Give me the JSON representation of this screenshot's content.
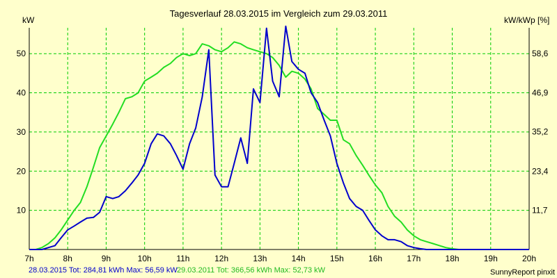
{
  "chart_data": {
    "type": "line",
    "title": "Tagesverlauf 28.03.2015 im Vergleich zum 29.03.2011",
    "ylabel_left": "kW",
    "ylabel_right": "kW/kWp [%]",
    "x_ticks": [
      "7h",
      "8h",
      "9h",
      "10h",
      "11h",
      "12h",
      "13h",
      "14h",
      "15h",
      "16h",
      "17h",
      "18h",
      "19h",
      "20h"
    ],
    "xlim": [
      7,
      20
    ],
    "ylim": [
      0,
      56.6
    ],
    "y_ticks_left": [
      "10",
      "20",
      "30",
      "40",
      "50"
    ],
    "y_ticks_right": [
      "11,7",
      "23,4",
      "35,2",
      "46,9",
      "58,6"
    ],
    "grid": true,
    "colors": {
      "background": "#ffffcc",
      "grid": "#00cc00",
      "axis": "#000000",
      "series_2015": "#0000cc",
      "series_2011": "#22dd22"
    },
    "series": [
      {
        "name": "28.03.2015",
        "x": [
          7.0,
          7.33,
          7.67,
          7.83,
          8.0,
          8.17,
          8.33,
          8.5,
          8.67,
          8.83,
          9.0,
          9.17,
          9.33,
          9.5,
          9.67,
          9.83,
          10.0,
          10.17,
          10.33,
          10.5,
          10.67,
          10.83,
          11.0,
          11.17,
          11.33,
          11.5,
          11.67,
          11.83,
          12.0,
          12.17,
          12.33,
          12.5,
          12.67,
          12.83,
          13.0,
          13.17,
          13.33,
          13.5,
          13.67,
          13.83,
          14.0,
          14.17,
          14.33,
          14.5,
          14.67,
          14.83,
          15.0,
          15.17,
          15.33,
          15.5,
          15.67,
          15.83,
          16.0,
          16.17,
          16.33,
          16.5,
          16.67,
          16.83,
          17.0,
          17.17,
          17.33,
          17.5,
          17.67,
          17.83,
          18.0,
          18.17,
          18.33,
          18.5,
          18.67,
          18.83,
          19.0,
          19.17,
          19.33,
          19.5,
          19.67,
          19.83,
          20.0
        ],
        "values": [
          0,
          0,
          1,
          3,
          5,
          6,
          7,
          8,
          8.2,
          9.5,
          13.5,
          13,
          13.5,
          15,
          17,
          19,
          22,
          27,
          29.5,
          29,
          27,
          24,
          20.5,
          27,
          31,
          39,
          51,
          19,
          16,
          16,
          22,
          28.5,
          22,
          41,
          37.5,
          56.5,
          43,
          39,
          57,
          48,
          46,
          45,
          40,
          37.5,
          33,
          29,
          22,
          17,
          13,
          11,
          10,
          7.5,
          5,
          3.5,
          2.5,
          2.5,
          2,
          1,
          0.5,
          0.2,
          0,
          0,
          0,
          0,
          0,
          0,
          0,
          0,
          0,
          0,
          0,
          0,
          0,
          0,
          0,
          0,
          0
        ],
        "total_kwh": "284,81",
        "max_kw": "56,59"
      },
      {
        "name": "29.03.2011",
        "x": [
          7.0,
          7.17,
          7.33,
          7.5,
          7.67,
          7.83,
          8.0,
          8.17,
          8.33,
          8.5,
          8.67,
          8.83,
          9.0,
          9.17,
          9.33,
          9.5,
          9.67,
          9.83,
          10.0,
          10.17,
          10.33,
          10.5,
          10.67,
          10.83,
          11.0,
          11.17,
          11.33,
          11.5,
          11.67,
          11.83,
          12.0,
          12.17,
          12.33,
          12.5,
          12.67,
          12.83,
          13.0,
          13.17,
          13.33,
          13.5,
          13.67,
          13.83,
          14.0,
          14.17,
          14.33,
          14.5,
          14.67,
          14.83,
          15.0,
          15.17,
          15.33,
          15.5,
          15.67,
          15.83,
          16.0,
          16.17,
          16.33,
          16.5,
          16.67,
          16.83,
          17.0,
          17.17,
          17.33,
          17.5,
          17.67,
          17.83,
          18.0,
          18.17,
          18.33,
          18.5,
          18.67,
          18.83,
          19.0,
          19.17,
          19.33,
          19.5,
          19.67,
          19.83,
          20.0
        ],
        "values": [
          0,
          0,
          0.5,
          1.5,
          3,
          5,
          7.5,
          10,
          12,
          16,
          21,
          26,
          29,
          32,
          35,
          38.5,
          39,
          40,
          43,
          44,
          45,
          46.5,
          47.5,
          49,
          50,
          49.5,
          50,
          52.5,
          52,
          51,
          50.5,
          51.5,
          53,
          52.5,
          51.5,
          51,
          50.5,
          50,
          49,
          47,
          44,
          45.5,
          45,
          43.5,
          41,
          36,
          34.5,
          33,
          33,
          28,
          27,
          24,
          21.5,
          19,
          16.5,
          14.5,
          11,
          8.5,
          7,
          5,
          3.5,
          2.5,
          2,
          1.5,
          1,
          0.5,
          0.2,
          0,
          0,
          0,
          0,
          0,
          0,
          0,
          0,
          0,
          0,
          0,
          0
        ],
        "total_kwh": "366,56",
        "max_kw": "52,73"
      }
    ]
  },
  "footer": {
    "legend_2015": "28.03.2015 Tot: 284,81 kWh Max: 56,59 kW",
    "legend_2011": "29.03.2011 Tot: 366,56 kWh Max: 52,73 kW",
    "credit": "SunnyReport pinxit"
  }
}
